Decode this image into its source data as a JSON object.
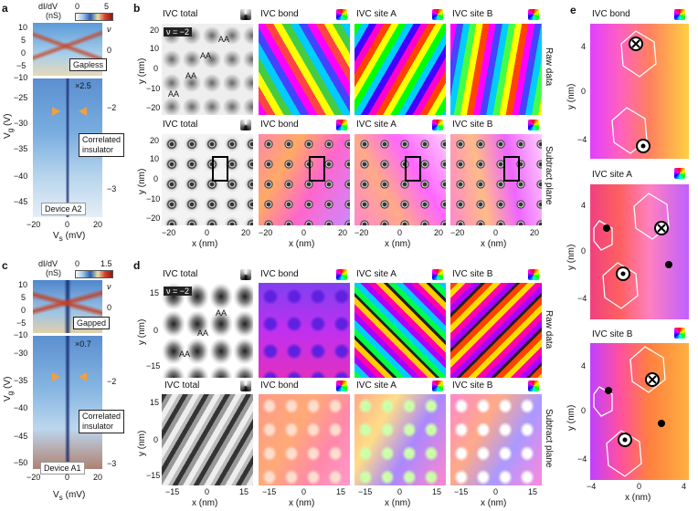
{
  "panel_labels": {
    "a": "a",
    "b": "b",
    "c": "c",
    "d": "d",
    "e": "e"
  },
  "a": {
    "cb_label1": "dI/dV",
    "cb_label2": "(nS)",
    "cb_min": "0",
    "cb_max": "5",
    "y_axis": "V",
    "y_sub": "g",
    "y_unit": "(V)",
    "x_axis": "V",
    "x_sub": "s",
    "x_unit": "(mV)",
    "x_ticks": [
      "−20",
      "0",
      "20"
    ],
    "y_ticks_top": [
      "10",
      "5",
      "0",
      "−5",
      "−10"
    ],
    "y_ticks_bottom": [
      "−25",
      "−30",
      "−35",
      "−40",
      "−45"
    ],
    "nu_label": "ν",
    "nu_ticks": [
      "0",
      "−2",
      "−3"
    ],
    "gap_label": "Gapless",
    "scale": "×2.5",
    "ci_line1": "Correlated",
    "ci_line2": "insulator",
    "device": "Device A2"
  },
  "c": {
    "cb_label1": "dI/dV",
    "cb_label2": "(nS)",
    "cb_min": "0",
    "cb_max": "1.5",
    "y_axis": "V",
    "y_sub": "g",
    "y_unit": "(V)",
    "x_axis": "V",
    "x_sub": "s",
    "x_unit": "(mV)",
    "x_ticks": [
      "−20",
      "0",
      "20"
    ],
    "y_ticks_top": [
      "10",
      "5",
      "0",
      "−5",
      "−10"
    ],
    "y_ticks_bottom": [
      "−30",
      "−35",
      "−40",
      "−45",
      "−50"
    ],
    "nu_label": "ν",
    "nu_ticks": [
      "0",
      "−2",
      "−3"
    ],
    "gap_label": "Gapped",
    "scale": "×0.7",
    "ci_line1": "Correlated",
    "ci_line2": "insulator",
    "device": "Device A1"
  },
  "b": {
    "titles_top": [
      "IVC total",
      "IVC bond",
      "IVC site A",
      "IVC site B"
    ],
    "titles_bottom": [
      "IVC total",
      "IVC bond",
      "IVC site A",
      "IVC site B"
    ],
    "nu_tag": "ν = −2",
    "aa": "AA",
    "row1": "Raw data",
    "row2": "Subtract plane",
    "y_axis": "y (nm)",
    "x_axis": "x (nm)",
    "y_ticks": [
      "20",
      "10",
      "0",
      "−10",
      "−20"
    ],
    "x_ticks": [
      "−20",
      "0",
      "20"
    ]
  },
  "d": {
    "titles_top": [
      "IVC total",
      "IVC bond",
      "IVC site A",
      "IVC site B"
    ],
    "titles_bottom": [
      "IVC total",
      "IVC bond",
      "IVC site A",
      "IVC site B"
    ],
    "nu_tag": "ν = −2",
    "aa": "AA",
    "row1": "Raw data",
    "row2": "Subtract plane",
    "y_axis": "y (nm)",
    "x_axis": "x (nm)",
    "y_ticks": [
      "15",
      "0",
      "−15"
    ],
    "x_ticks": [
      "−15",
      "0",
      "15"
    ]
  },
  "e": {
    "titles": [
      "IVC bond",
      "IVC site A",
      "IVC site B"
    ],
    "y_axis": "y (nm)",
    "x_axis": "x (nm)",
    "y_ticks": [
      "4",
      "0",
      "−4"
    ],
    "x_ticks": [
      "−4",
      "0",
      "4"
    ]
  }
}
